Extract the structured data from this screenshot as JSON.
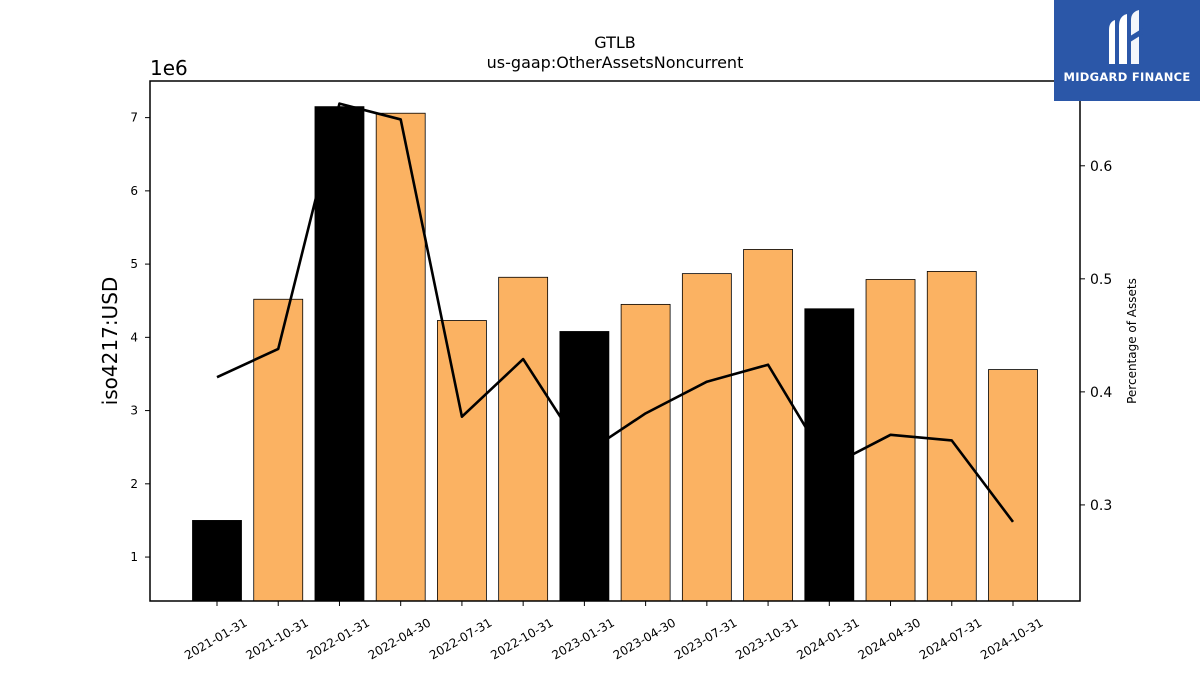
{
  "chart_data": {
    "type": "bar",
    "title": "GTLB",
    "subtitle": "us-gaap:OtherAssetsNoncurrent",
    "ylabel": "iso4217:USD",
    "y_offset_label": "1e6",
    "y2label": "Percentage of Assets",
    "categories": [
      "2021-01-31",
      "2021-10-31",
      "2022-01-31",
      "2022-04-30",
      "2022-07-31",
      "2022-10-31",
      "2023-01-31",
      "2023-04-30",
      "2023-07-31",
      "2023-10-31",
      "2024-01-31",
      "2024-04-30",
      "2024-07-31",
      "2024-10-31"
    ],
    "values": [
      1500000,
      4520000,
      7150000,
      7060000,
      4230000,
      4820000,
      4080000,
      4450000,
      4870000,
      5200000,
      4390000,
      4790000,
      4900000,
      3560000
    ],
    "bar_kind": [
      "annual",
      "quarterly",
      "annual",
      "quarterly",
      "quarterly",
      "quarterly",
      "annual",
      "quarterly",
      "quarterly",
      "quarterly",
      "annual",
      "quarterly",
      "quarterly",
      "quarterly"
    ],
    "colors": {
      "annual": "#000000",
      "quarterly": "#fbb262",
      "line": "#000000"
    },
    "line_series": {
      "name": "Percentage of Assets",
      "values": [
        0.413,
        0.438,
        0.655,
        0.641,
        0.378,
        0.429,
        0.345,
        0.381,
        0.409,
        0.424,
        0.334,
        0.362,
        0.357,
        0.285
      ]
    },
    "ylim": [
      400000,
      7500000
    ],
    "y_ticks": [
      1,
      2,
      3,
      4,
      5,
      6,
      7
    ],
    "y2lim": [
      0.215,
      0.675
    ],
    "y2_ticks": [
      "0.3",
      "0.4",
      "0.5",
      "0.6"
    ],
    "grid": false,
    "legend": "none"
  },
  "logo": {
    "text": "MIDGARD FINANCE"
  }
}
